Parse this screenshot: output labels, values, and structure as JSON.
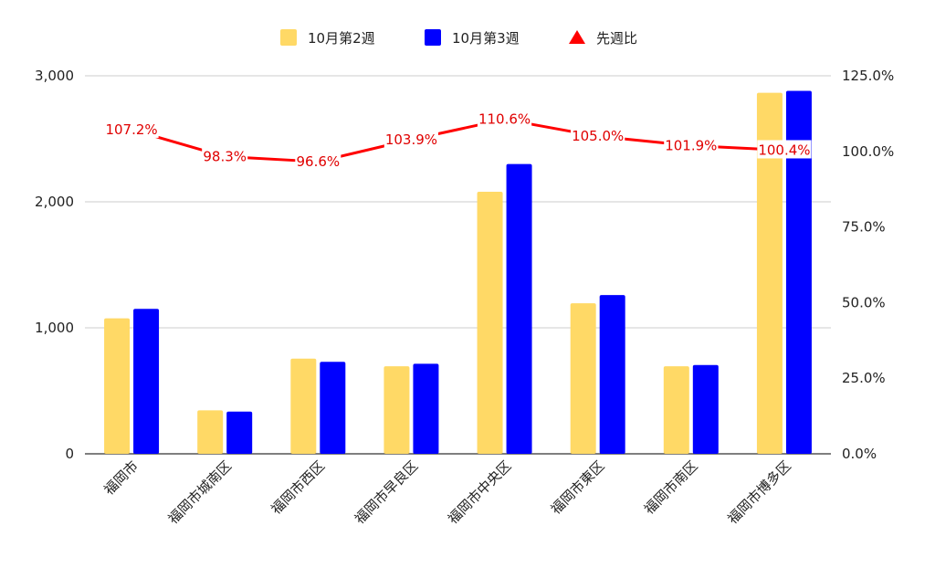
{
  "chart_data": {
    "type": "bar",
    "categories": [
      "福岡市",
      "福岡市城南区",
      "福岡市西区",
      "福岡市早良区",
      "福岡市中央区",
      "福岡市東区",
      "福岡市南区",
      "福岡市博多区"
    ],
    "series": [
      {
        "name": "10月第2週",
        "kind": "bar",
        "axis": "left",
        "color": "#ffd966",
        "values": [
          1075,
          345,
          755,
          695,
          2080,
          1195,
          695,
          2865
        ]
      },
      {
        "name": "10月第3週",
        "kind": "bar",
        "axis": "left",
        "color": "#0000ff",
        "values": [
          1150,
          335,
          730,
          715,
          2300,
          1260,
          705,
          2880
        ]
      },
      {
        "name": "先週比",
        "kind": "line",
        "axis": "right",
        "color": "#ff0000",
        "marker": "triangle",
        "values": [
          107.2,
          98.3,
          96.6,
          103.9,
          110.6,
          105.0,
          101.9,
          100.4
        ],
        "labels": [
          "107.2%",
          "98.3%",
          "96.6%",
          "103.9%",
          "110.6%",
          "105.0%",
          "101.9%",
          "100.4%"
        ]
      }
    ],
    "y_left": {
      "min": 0,
      "max": 3000,
      "ticks": [
        0,
        1000,
        2000,
        3000
      ],
      "tick_labels": [
        "0",
        "1,000",
        "2,000",
        "3,000"
      ]
    },
    "y_right": {
      "min": 0,
      "max": 125,
      "ticks": [
        0,
        25,
        50,
        75,
        100,
        125
      ],
      "tick_labels": [
        "0.0%",
        "25.0%",
        "50.0%",
        "75.0%",
        "100.0%",
        "125.0%"
      ]
    },
    "grid": true,
    "legend_position": "top-center",
    "title": "",
    "xlabel": "",
    "ylabel": ""
  }
}
